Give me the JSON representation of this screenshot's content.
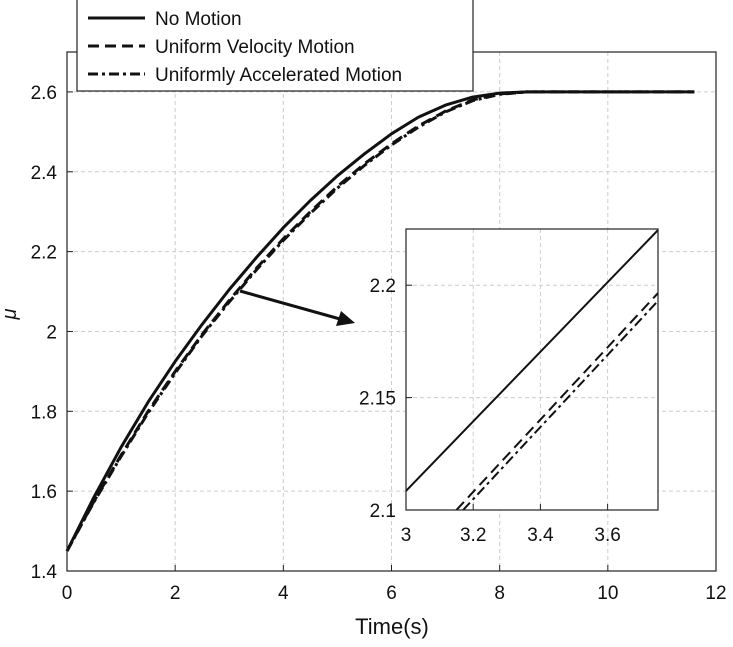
{
  "chart_data": [
    {
      "type": "line",
      "xlabel": "Time(s)",
      "ylabel": "μ",
      "xlim": [
        0,
        12
      ],
      "ylim": [
        1.4,
        2.7
      ],
      "xticks": [
        "0",
        "2",
        "4",
        "6",
        "8",
        "10",
        "12"
      ],
      "yticks": [
        "1.4",
        "1.6",
        "1.8",
        "2",
        "2.2",
        "2.4",
        "2.6"
      ],
      "grid": true,
      "legend_position": "top-left",
      "series": [
        {
          "name": "No Motion",
          "style": "solid",
          "x": [
            0,
            0.5,
            1,
            1.5,
            2,
            2.5,
            3,
            3.5,
            4,
            4.5,
            5,
            5.5,
            6,
            6.5,
            7,
            7.5,
            8,
            8.5,
            9,
            10,
            11,
            11.6
          ],
          "y": [
            1.45,
            1.585,
            1.71,
            1.823,
            1.925,
            2.018,
            2.105,
            2.185,
            2.26,
            2.328,
            2.39,
            2.445,
            2.495,
            2.537,
            2.567,
            2.587,
            2.597,
            2.6,
            2.6,
            2.6,
            2.6,
            2.6
          ]
        },
        {
          "name": "Uniform Velocity Motion",
          "style": "dashed",
          "x": [
            0,
            0.5,
            1,
            1.5,
            2,
            2.5,
            3,
            3.5,
            4,
            4.5,
            5,
            5.5,
            6,
            6.5,
            7,
            7.5,
            8,
            8.5,
            9,
            10,
            11,
            11.6
          ],
          "y": [
            1.45,
            1.575,
            1.69,
            1.8,
            1.9,
            1.993,
            2.078,
            2.158,
            2.232,
            2.3,
            2.363,
            2.42,
            2.47,
            2.515,
            2.552,
            2.58,
            2.595,
            2.6,
            2.6,
            2.6,
            2.6,
            2.6
          ]
        },
        {
          "name": "Uniformly Accelerated Motion",
          "style": "dashdot",
          "x": [
            0,
            0.5,
            1,
            1.5,
            2,
            2.5,
            3,
            3.5,
            4,
            4.5,
            5,
            5.5,
            6,
            6.5,
            7,
            7.5,
            8,
            8.5,
            9,
            10,
            11,
            11.6
          ],
          "y": [
            1.45,
            1.573,
            1.687,
            1.796,
            1.896,
            1.99,
            2.074,
            2.154,
            2.228,
            2.296,
            2.359,
            2.416,
            2.467,
            2.512,
            2.55,
            2.578,
            2.594,
            2.6,
            2.6,
            2.6,
            2.6,
            2.6
          ]
        }
      ]
    },
    {
      "type": "line",
      "role": "inset-zoom",
      "xlim": [
        3,
        3.75
      ],
      "ylim": [
        2.1,
        2.225
      ],
      "xticks": [
        "3",
        "3.2",
        "3.4",
        "3.6"
      ],
      "yticks": [
        "2.1",
        "2.15",
        "2.2"
      ],
      "grid": true,
      "series": [
        {
          "name": "No Motion",
          "style": "solid",
          "x": [
            3.0,
            3.75
          ],
          "y": [
            2.1085,
            2.2245
          ]
        },
        {
          "name": "Uniform Velocity Motion",
          "style": "dashed",
          "x": [
            3.15,
            3.75
          ],
          "y": [
            2.1,
            2.1965
          ]
        },
        {
          "name": "Uniformly Accelerated Motion",
          "style": "dashdot",
          "x": [
            3.17,
            3.75
          ],
          "y": [
            2.1,
            2.193
          ]
        }
      ]
    }
  ],
  "legend": {
    "items": [
      "No Motion",
      "Uniform Velocity Motion",
      "Uniformly Accelerated Motion"
    ]
  }
}
